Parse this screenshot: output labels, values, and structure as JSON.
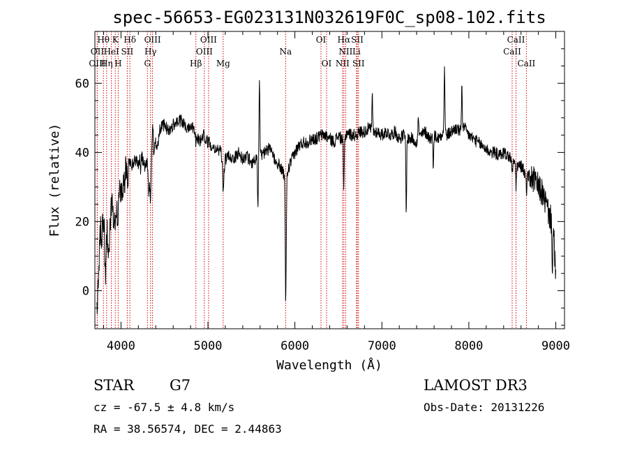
{
  "chart_data": {
    "type": "line",
    "title": "spec-56653-EG023131N032619F0C_sp08-102.fits",
    "xlabel": "Wavelength (Å)",
    "ylabel": "Flux (relative)",
    "xlim": [
      3700,
      9100
    ],
    "ylim": [
      -11,
      75
    ],
    "xticks": [
      4000,
      5000,
      6000,
      7000,
      8000,
      9000
    ],
    "yticks": [
      0,
      20,
      40,
      60
    ],
    "grid": false,
    "legend": "none",
    "colors": {
      "spectrum": "#000000",
      "line_marker": "#cc0000"
    },
    "anchors": [
      [
        3720,
        -8
      ],
      [
        3745,
        5
      ],
      [
        3760,
        22
      ],
      [
        3780,
        14
      ],
      [
        3800,
        26
      ],
      [
        3820,
        2
      ],
      [
        3840,
        18
      ],
      [
        3860,
        12
      ],
      [
        3880,
        22
      ],
      [
        3900,
        28
      ],
      [
        3920,
        16
      ],
      [
        3940,
        24
      ],
      [
        3960,
        20
      ],
      [
        3980,
        30
      ],
      [
        4000,
        26
      ],
      [
        4020,
        32
      ],
      [
        4040,
        30
      ],
      [
        4060,
        36
      ],
      [
        4080,
        33
      ],
      [
        4100,
        38
      ],
      [
        4130,
        36
      ],
      [
        4160,
        38
      ],
      [
        4200,
        37
      ],
      [
        4240,
        39
      ],
      [
        4280,
        35
      ],
      [
        4300,
        39
      ],
      [
        4320,
        28
      ],
      [
        4340,
        36
      ],
      [
        4360,
        41
      ],
      [
        4380,
        40
      ],
      [
        4400,
        43
      ],
      [
        4420,
        42
      ],
      [
        4450,
        47
      ],
      [
        4500,
        48
      ],
      [
        4550,
        46
      ],
      [
        4600,
        48
      ],
      [
        4650,
        49
      ],
      [
        4700,
        49
      ],
      [
        4750,
        47
      ],
      [
        4800,
        48
      ],
      [
        4850,
        47
      ],
      [
        4880,
        44
      ],
      [
        4900,
        43
      ],
      [
        4950,
        45
      ],
      [
        5000,
        43
      ],
      [
        5050,
        42
      ],
      [
        5100,
        41
      ],
      [
        5150,
        40
      ],
      [
        5180,
        34
      ],
      [
        5200,
        38
      ],
      [
        5250,
        39
      ],
      [
        5300,
        38
      ],
      [
        5350,
        40
      ],
      [
        5400,
        38
      ],
      [
        5450,
        39
      ],
      [
        5500,
        37
      ],
      [
        5550,
        38
      ],
      [
        5600,
        39
      ],
      [
        5650,
        40
      ],
      [
        5700,
        41
      ],
      [
        5750,
        39
      ],
      [
        5800,
        37
      ],
      [
        5850,
        35
      ],
      [
        5890,
        32
      ],
      [
        5910,
        34
      ],
      [
        5950,
        37
      ],
      [
        6000,
        40
      ],
      [
        6050,
        42
      ],
      [
        6100,
        43
      ],
      [
        6150,
        43
      ],
      [
        6200,
        44
      ],
      [
        6250,
        44
      ],
      [
        6300,
        45
      ],
      [
        6350,
        45
      ],
      [
        6400,
        44
      ],
      [
        6450,
        43
      ],
      [
        6500,
        45
      ],
      [
        6563,
        43
      ],
      [
        6600,
        46
      ],
      [
        6650,
        45
      ],
      [
        6700,
        45
      ],
      [
        6750,
        46
      ],
      [
        6800,
        46
      ],
      [
        6850,
        47
      ],
      [
        6900,
        46
      ],
      [
        6950,
        46
      ],
      [
        7000,
        45
      ],
      [
        7050,
        46
      ],
      [
        7100,
        45
      ],
      [
        7150,
        46
      ],
      [
        7200,
        44
      ],
      [
        7250,
        45
      ],
      [
        7300,
        44
      ],
      [
        7350,
        44
      ],
      [
        7400,
        43
      ],
      [
        7450,
        45
      ],
      [
        7500,
        46
      ],
      [
        7550,
        44
      ],
      [
        7600,
        45
      ],
      [
        7650,
        44
      ],
      [
        7700,
        46
      ],
      [
        7750,
        45
      ],
      [
        7800,
        46
      ],
      [
        7850,
        47
      ],
      [
        7900,
        46
      ],
      [
        7950,
        47
      ],
      [
        8000,
        45
      ],
      [
        8050,
        44
      ],
      [
        8100,
        43
      ],
      [
        8150,
        42
      ],
      [
        8200,
        41
      ],
      [
        8250,
        40
      ],
      [
        8300,
        40
      ],
      [
        8350,
        39
      ],
      [
        8400,
        40
      ],
      [
        8450,
        39
      ],
      [
        8500,
        38
      ],
      [
        8550,
        36
      ],
      [
        8600,
        36
      ],
      [
        8650,
        34
      ],
      [
        8700,
        33
      ],
      [
        8750,
        32
      ],
      [
        8800,
        30
      ],
      [
        8850,
        28
      ],
      [
        8900,
        24
      ],
      [
        8950,
        20
      ],
      [
        8980,
        14
      ],
      [
        9000,
        3
      ]
    ],
    "features": [
      [
        3760,
        -5
      ],
      [
        3800,
        -6
      ],
      [
        3870,
        -4
      ],
      [
        4227,
        -4
      ],
      [
        4340,
        -10
      ],
      [
        4365,
        8
      ],
      [
        4861,
        -4
      ],
      [
        5175,
        -6
      ],
      [
        5575,
        -16
      ],
      [
        5592,
        22
      ],
      [
        5893,
        -30
      ],
      [
        5900,
        -14
      ],
      [
        6563,
        -14
      ],
      [
        6890,
        10
      ],
      [
        7280,
        -22
      ],
      [
        7420,
        7
      ],
      [
        7590,
        -8
      ],
      [
        7720,
        20
      ],
      [
        7920,
        14
      ],
      [
        8498,
        -5
      ],
      [
        8542,
        -6
      ],
      [
        8662,
        -5
      ],
      [
        8960,
        -10
      ]
    ],
    "spectral_lines": [
      {
        "label": "Hθ",
        "wavelength": 3798,
        "row": 1
      },
      {
        "label": "OII",
        "wavelength": 3727,
        "row": 2
      },
      {
        "label": "OIII",
        "wavelength": 3727,
        "row": 3
      },
      {
        "label": "Hη",
        "wavelength": 3835,
        "row": 3
      },
      {
        "label": "HeI",
        "wavelength": 3889,
        "row": 2
      },
      {
        "label": "K",
        "wavelength": 3934,
        "row": 1
      },
      {
        "label": "H",
        "wavelength": 3968,
        "row": 3
      },
      {
        "label": "SII",
        "wavelength": 4072,
        "row": 2
      },
      {
        "label": "Hδ",
        "wavelength": 4102,
        "row": 1
      },
      {
        "label": "OIII",
        "wavelength": 4363,
        "row": 1
      },
      {
        "label": "Hγ",
        "wavelength": 4340,
        "row": 2
      },
      {
        "label": "G",
        "wavelength": 4304,
        "row": 3
      },
      {
        "label": "OIII",
        "wavelength": 5007,
        "row": 1
      },
      {
        "label": "OIII",
        "wavelength": 4959,
        "row": 2
      },
      {
        "label": "Hβ",
        "wavelength": 4861,
        "row": 3
      },
      {
        "label": "Mg",
        "wavelength": 5175,
        "row": 3
      },
      {
        "label": "Na",
        "wavelength": 5893,
        "row": 2
      },
      {
        "label": "OI",
        "wavelength": 6300,
        "row": 1
      },
      {
        "label": "OI",
        "wavelength": 6364,
        "row": 3
      },
      {
        "label": "Hα",
        "wavelength": 6563,
        "row": 1
      },
      {
        "label": "NII",
        "wavelength": 6584,
        "row": 2
      },
      {
        "label": "NII",
        "wavelength": 6548,
        "row": 3
      },
      {
        "label": "SII",
        "wavelength": 6717,
        "row": 1
      },
      {
        "label": "Li",
        "wavelength": 6708,
        "row": 2
      },
      {
        "label": "SII",
        "wavelength": 6731,
        "row": 3
      },
      {
        "label": "CaII",
        "wavelength": 8542,
        "row": 1
      },
      {
        "label": "CaII",
        "wavelength": 8498,
        "row": 2
      },
      {
        "label": "CaII",
        "wavelength": 8662,
        "row": 3
      }
    ]
  },
  "info": {
    "class": "STAR",
    "subclass": "G7",
    "survey": "LAMOST DR3",
    "redshift": "cz = -67.5 ± 4.8 km/s",
    "obs_date": "Obs-Date: 20131226",
    "coords": "RA =  38.56574, DEC =   2.44863"
  }
}
